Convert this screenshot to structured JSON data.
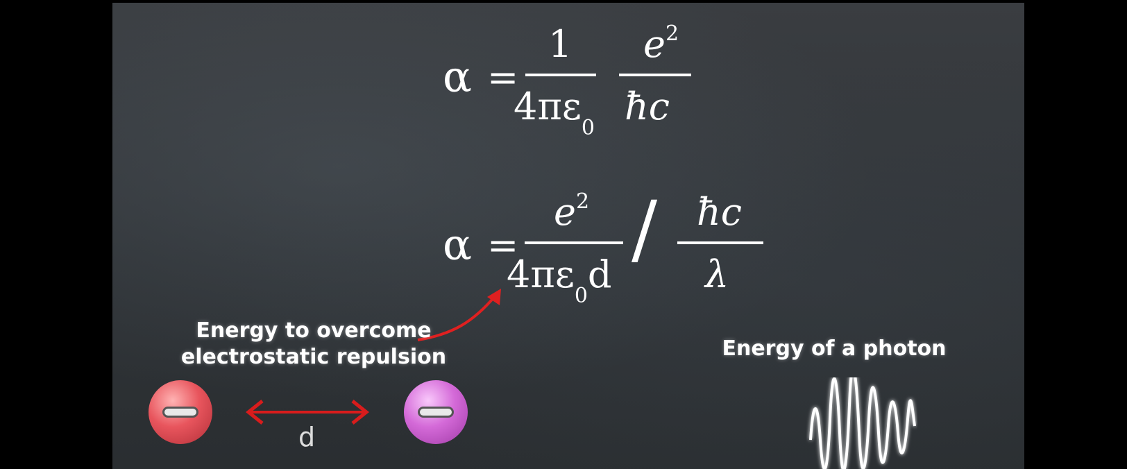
{
  "formula1": {
    "lhs": "α",
    "equals": "=",
    "frac1_num": "1",
    "frac1_den_main": "4πε",
    "frac1_den_sub": "0",
    "frac2_num_base": "e",
    "frac2_num_sup": "2",
    "frac2_den": "ħc"
  },
  "formula2": {
    "lhs": "α",
    "equals": "=",
    "frac1_num_base": "e",
    "frac1_num_sup": "2",
    "frac1_den_main": "4πε",
    "frac1_den_sub": "0",
    "frac1_den_tail": "d",
    "divide": "/",
    "frac2_num": "ħc",
    "frac2_den": "λ"
  },
  "labels": {
    "repulsion_line1": "Energy to overcome",
    "repulsion_line2": "electrostatic repulsion",
    "photon": "Energy of a photon",
    "distance": "d"
  },
  "colors": {
    "arrow": "#e02020",
    "charge_left": "#e8555d",
    "charge_right": "#d46ad8"
  }
}
